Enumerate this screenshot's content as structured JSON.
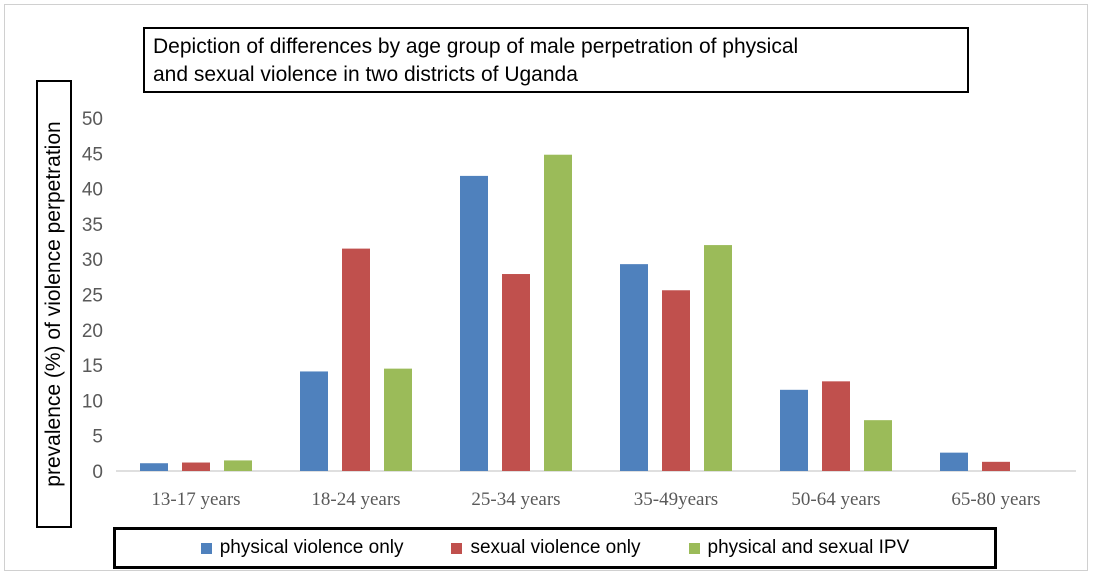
{
  "colors": {
    "series": [
      "#4f81bd",
      "#c0504d",
      "#9bbb59"
    ],
    "grid": "#d9d9d9",
    "axis": "#bfbfbf",
    "tick": "#595959"
  },
  "chart_data": {
    "type": "bar",
    "title": "Depiction of differences by age group of male perpetration of physical and sexual violence in two districts of Uganda",
    "title_lines": [
      "Depiction of differences by age group of male perpetration of physical",
      "and sexual violence in two districts of Uganda"
    ],
    "xlabel": "",
    "ylabel": "prevalence (%) of violence perpetration",
    "ylim": [
      0,
      50
    ],
    "yticks": [
      0,
      5,
      10,
      15,
      20,
      25,
      30,
      35,
      40,
      45,
      50
    ],
    "grid": false,
    "legend_position": "bottom",
    "categories": [
      "13-17 years",
      "18-24 years",
      "25-34 years",
      "35-49years",
      "50-64 years",
      "65-80 years"
    ],
    "series": [
      {
        "name": "physical violence only",
        "values": [
          1.1,
          14.1,
          41.8,
          29.3,
          11.5,
          2.6
        ]
      },
      {
        "name": "sexual violence only",
        "values": [
          1.2,
          31.5,
          27.9,
          25.6,
          12.7,
          1.3
        ]
      },
      {
        "name": "physical and sexual IPV",
        "values": [
          1.5,
          14.5,
          44.8,
          32.0,
          7.2,
          0
        ]
      }
    ]
  }
}
